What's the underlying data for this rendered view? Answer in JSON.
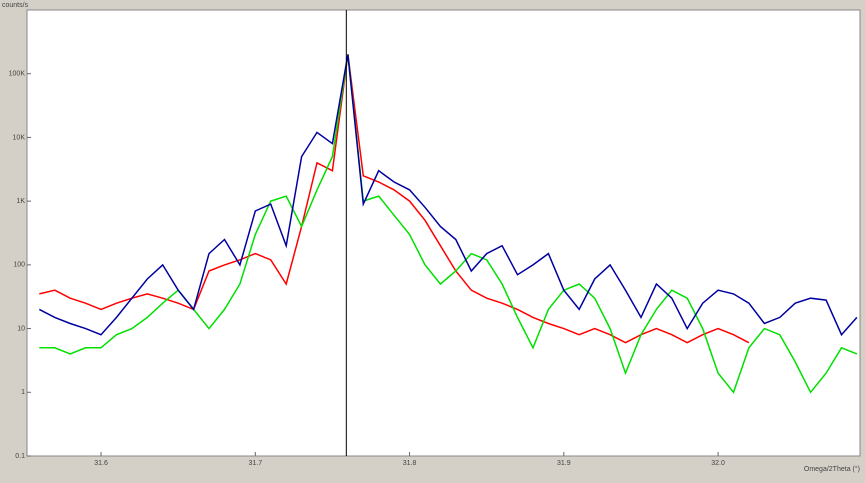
{
  "chart_data": {
    "type": "line",
    "y_label": "counts/s",
    "x_label": "Omega/2Theta (°)",
    "log_y": true,
    "xlim": [
      31.552,
      32.092
    ],
    "ylim": [
      0.1,
      1000000
    ],
    "xticks": [
      31.6,
      31.7,
      31.8,
      31.9,
      {
        "value": 32,
        "label": "32.0"
      }
    ],
    "yticks": [
      0.1,
      1,
      10,
      100,
      {
        "value": 1000,
        "label": "1K"
      },
      {
        "value": 10000,
        "label": "10K"
      },
      {
        "value": 100000,
        "label": "100K"
      }
    ],
    "reference_line": 31.759,
    "x": [
      31.56,
      31.57,
      31.58,
      31.59,
      31.6,
      31.61,
      31.62,
      31.63,
      31.64,
      31.65,
      31.66,
      31.67,
      31.68,
      31.69,
      31.7,
      31.71,
      31.72,
      31.73,
      31.74,
      31.75,
      31.76,
      31.77,
      31.78,
      31.79,
      31.8,
      31.81,
      31.82,
      31.83,
      31.84,
      31.85,
      31.86,
      31.87,
      31.88,
      31.89,
      31.9,
      31.91,
      31.92,
      31.93,
      31.94,
      31.95,
      31.96,
      31.97,
      31.98,
      31.99,
      32.0,
      32.01,
      32.02,
      32.03,
      32.04,
      32.05,
      32.06,
      32.07,
      32.08,
      32.09
    ],
    "series": [
      {
        "color": "#0000a0",
        "values": [
          20,
          15,
          12,
          10,
          8,
          15,
          30,
          60,
          100,
          40,
          20,
          150,
          250,
          100,
          700,
          900,
          200,
          5000,
          12000,
          8000,
          200000,
          900,
          3000,
          2000,
          1500,
          800,
          400,
          250,
          80,
          150,
          200,
          70,
          100,
          150,
          40,
          20,
          60,
          100,
          40,
          15,
          50,
          30,
          10,
          25,
          40,
          35,
          25,
          12,
          15,
          25,
          30,
          28,
          8,
          15
        ]
      },
      {
        "color": "#ff0000",
        "values": [
          35,
          40,
          30,
          25,
          20,
          25,
          30,
          35,
          30,
          25,
          20,
          80,
          100,
          120,
          150,
          120,
          50,
          400,
          4000,
          3000,
          200000,
          2500,
          2000,
          1500,
          1000,
          500,
          200,
          80,
          40,
          30,
          25,
          20,
          15,
          12,
          10,
          8,
          10,
          8,
          6,
          8,
          10,
          8,
          6,
          8,
          10,
          8,
          6,
          null,
          null,
          null,
          null,
          null,
          null,
          null
        ]
      },
      {
        "color": "#00e000",
        "values": [
          5,
          5,
          4,
          5,
          5,
          8,
          10,
          15,
          25,
          40,
          20,
          10,
          20,
          50,
          300,
          1000,
          1200,
          400,
          1500,
          5000,
          200000,
          1000,
          1200,
          600,
          300,
          100,
          50,
          80,
          150,
          120,
          50,
          15,
          5,
          20,
          40,
          50,
          30,
          10,
          2,
          8,
          20,
          40,
          30,
          10,
          2,
          1,
          5,
          10,
          8,
          3,
          1,
          2,
          5,
          4
        ]
      }
    ]
  }
}
